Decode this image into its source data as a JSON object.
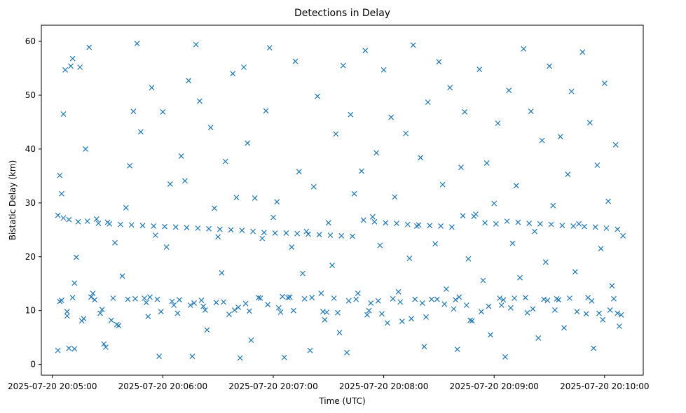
{
  "chart_data": {
    "type": "scatter",
    "title": "Detections in Delay",
    "xlabel": "Time (UTC)",
    "ylabel": "Bistatic Delay (km)",
    "x_ticks": [
      "2025-07-20 20:05:00",
      "2025-07-20 20:06:00",
      "2025-07-20 20:07:00",
      "2025-07-20 20:08:00",
      "2025-07-20 20:09:00",
      "2025-07-20 20:10:00"
    ],
    "y_ticks": [
      "0",
      "10",
      "20",
      "30",
      "40",
      "50",
      "60"
    ],
    "xlim": [
      "2025-07-20 20:04:54",
      "2025-07-20 20:10:21"
    ],
    "ylim": [
      -2,
      63
    ],
    "grid": false,
    "marker": "x",
    "color": "#1f77b4",
    "series": [
      {
        "name": "",
        "x": [
          "2025-07-20 20:05:03",
          "2025-07-20 20:05:04",
          "2025-07-20 20:05:05",
          "2025-07-20 20:05:06",
          "2025-07-20 20:05:07",
          "2025-07-20 20:05:08",
          "2025-07-20 20:05:09",
          "2025-07-20 20:05:10",
          "2025-07-20 20:05:11",
          "2025-07-20 20:05:12",
          "2025-07-20 20:05:13",
          "2025-07-20 20:05:15",
          "2025-07-20 20:05:17",
          "2025-07-20 20:05:18",
          "2025-07-20 20:05:20",
          "2025-07-20 20:05:22",
          "2025-07-20 20:05:24",
          "2025-07-20 20:05:26",
          "2025-07-20 20:05:28",
          "2025-07-20 20:05:30",
          "2025-07-20 20:05:32",
          "2025-07-20 20:05:34",
          "2025-07-20 20:05:36",
          "2025-07-20 20:05:38",
          "2025-07-20 20:05:40",
          "2025-07-20 20:05:42",
          "2025-07-20 20:05:44",
          "2025-07-20 20:05:46",
          "2025-07-20 20:05:48",
          "2025-07-20 20:05:50",
          "2025-07-20 20:05:52",
          "2025-07-20 20:05:54",
          "2025-07-20 20:05:56",
          "2025-07-20 20:05:58",
          "2025-07-20 20:06:00",
          "2025-07-20 20:06:02",
          "2025-07-20 20:06:04",
          "2025-07-20 20:06:06",
          "2025-07-20 20:06:08",
          "2025-07-20 20:06:10",
          "2025-07-20 20:06:12",
          "2025-07-20 20:06:14",
          "2025-07-20 20:06:16",
          "2025-07-20 20:06:18",
          "2025-07-20 20:06:20",
          "2025-07-20 20:06:22",
          "2025-07-20 20:06:24",
          "2025-07-20 20:06:26",
          "2025-07-20 20:06:28",
          "2025-07-20 20:06:30",
          "2025-07-20 20:06:32",
          "2025-07-20 20:06:34",
          "2025-07-20 20:06:36",
          "2025-07-20 20:06:38",
          "2025-07-20 20:06:40",
          "2025-07-20 20:06:42",
          "2025-07-20 20:06:44",
          "2025-07-20 20:06:46",
          "2025-07-20 20:06:48",
          "2025-07-20 20:06:50",
          "2025-07-20 20:06:52",
          "2025-07-20 20:06:54",
          "2025-07-20 20:06:56",
          "2025-07-20 20:06:58",
          "2025-07-20 20:07:00",
          "2025-07-20 20:07:02",
          "2025-07-20 20:07:04",
          "2025-07-20 20:07:06",
          "2025-07-20 20:07:08",
          "2025-07-20 20:07:10",
          "2025-07-20 20:07:12",
          "2025-07-20 20:07:14",
          "2025-07-20 20:07:16",
          "2025-07-20 20:07:18",
          "2025-07-20 20:07:20",
          "2025-07-20 20:07:22",
          "2025-07-20 20:07:24",
          "2025-07-20 20:07:26",
          "2025-07-20 20:07:28",
          "2025-07-20 20:07:30",
          "2025-07-20 20:07:32",
          "2025-07-20 20:07:34",
          "2025-07-20 20:07:36",
          "2025-07-20 20:07:38",
          "2025-07-20 20:07:40",
          "2025-07-20 20:07:42",
          "2025-07-20 20:07:44",
          "2025-07-20 20:07:46",
          "2025-07-20 20:07:48",
          "2025-07-20 20:07:50",
          "2025-07-20 20:07:52",
          "2025-07-20 20:07:54",
          "2025-07-20 20:07:56",
          "2025-07-20 20:07:58",
          "2025-07-20 20:08:00",
          "2025-07-20 20:08:02",
          "2025-07-20 20:08:04",
          "2025-07-20 20:08:06",
          "2025-07-20 20:08:08",
          "2025-07-20 20:08:10",
          "2025-07-20 20:08:12",
          "2025-07-20 20:08:14",
          "2025-07-20 20:08:16",
          "2025-07-20 20:08:18",
          "2025-07-20 20:08:20",
          "2025-07-20 20:08:22",
          "2025-07-20 20:08:24",
          "2025-07-20 20:08:26",
          "2025-07-20 20:08:28",
          "2025-07-20 20:08:30",
          "2025-07-20 20:08:32",
          "2025-07-20 20:08:34",
          "2025-07-20 20:08:36",
          "2025-07-20 20:08:38",
          "2025-07-20 20:08:40",
          "2025-07-20 20:08:42",
          "2025-07-20 20:08:44",
          "2025-07-20 20:08:46",
          "2025-07-20 20:08:48",
          "2025-07-20 20:08:50",
          "2025-07-20 20:08:52",
          "2025-07-20 20:08:54",
          "2025-07-20 20:08:56",
          "2025-07-20 20:08:58",
          "2025-07-20 20:09:00",
          "2025-07-20 20:09:02",
          "2025-07-20 20:09:04",
          "2025-07-20 20:09:06",
          "2025-07-20 20:09:08",
          "2025-07-20 20:09:10",
          "2025-07-20 20:09:12",
          "2025-07-20 20:09:14",
          "2025-07-20 20:09:16",
          "2025-07-20 20:09:18",
          "2025-07-20 20:09:20",
          "2025-07-20 20:09:22",
          "2025-07-20 20:09:24",
          "2025-07-20 20:09:26",
          "2025-07-20 20:09:28",
          "2025-07-20 20:09:30",
          "2025-07-20 20:09:32",
          "2025-07-20 20:09:34",
          "2025-07-20 20:09:36",
          "2025-07-20 20:09:38",
          "2025-07-20 20:09:40",
          "2025-07-20 20:09:42",
          "2025-07-20 20:09:44",
          "2025-07-20 20:09:46",
          "2025-07-20 20:09:48",
          "2025-07-20 20:09:50",
          "2025-07-20 20:09:52",
          "2025-07-20 20:09:54",
          "2025-07-20 20:09:56",
          "2025-07-20 20:09:58",
          "2025-07-20 20:10:00",
          "2025-07-20 20:10:02",
          "2025-07-20 20:10:04",
          "2025-07-20 20:10:06",
          "2025-07-20 20:10:08",
          "2025-07-20 20:10:10",
          "2025-07-20 20:05:03",
          "2025-07-20 20:05:06",
          "2025-07-20 20:05:09",
          "2025-07-20 20:05:14",
          "2025-07-20 20:05:19",
          "2025-07-20 20:05:25",
          "2025-07-20 20:05:31",
          "2025-07-20 20:05:37",
          "2025-07-20 20:05:43",
          "2025-07-20 20:05:49",
          "2025-07-20 20:05:55",
          "2025-07-20 20:06:01",
          "2025-07-20 20:06:07",
          "2025-07-20 20:06:13",
          "2025-07-20 20:06:19",
          "2025-07-20 20:06:25",
          "2025-07-20 20:06:31",
          "2025-07-20 20:06:37",
          "2025-07-20 20:06:43",
          "2025-07-20 20:06:49",
          "2025-07-20 20:06:55",
          "2025-07-20 20:07:01",
          "2025-07-20 20:07:07",
          "2025-07-20 20:07:13",
          "2025-07-20 20:07:19",
          "2025-07-20 20:07:25",
          "2025-07-20 20:07:31",
          "2025-07-20 20:07:37",
          "2025-07-20 20:07:43",
          "2025-07-20 20:07:49",
          "2025-07-20 20:07:55",
          "2025-07-20 20:08:01",
          "2025-07-20 20:08:07",
          "2025-07-20 20:08:13",
          "2025-07-20 20:08:19",
          "2025-07-20 20:08:25",
          "2025-07-20 20:08:31",
          "2025-07-20 20:08:37",
          "2025-07-20 20:08:43",
          "2025-07-20 20:08:49",
          "2025-07-20 20:08:55",
          "2025-07-20 20:09:01",
          "2025-07-20 20:09:07",
          "2025-07-20 20:09:13",
          "2025-07-20 20:09:19",
          "2025-07-20 20:09:25",
          "2025-07-20 20:09:31",
          "2025-07-20 20:09:37",
          "2025-07-20 20:09:43",
          "2025-07-20 20:09:49",
          "2025-07-20 20:09:55",
          "2025-07-20 20:10:01",
          "2025-07-20 20:10:07",
          "2025-07-20 20:05:04",
          "2025-07-20 20:05:11",
          "2025-07-20 20:05:21",
          "2025-07-20 20:05:33",
          "2025-07-20 20:05:45",
          "2025-07-20 20:05:57",
          "2025-07-20 20:06:09",
          "2025-07-20 20:06:21",
          "2025-07-20 20:06:33",
          "2025-07-20 20:06:45",
          "2025-07-20 20:06:57",
          "2025-07-20 20:07:09",
          "2025-07-20 20:07:21",
          "2025-07-20 20:07:33",
          "2025-07-20 20:07:45",
          "2025-07-20 20:07:57",
          "2025-07-20 20:08:09",
          "2025-07-20 20:08:21",
          "2025-07-20 20:08:33",
          "2025-07-20 20:08:45",
          "2025-07-20 20:08:57",
          "2025-07-20 20:09:09",
          "2025-07-20 20:09:21",
          "2025-07-20 20:09:33",
          "2025-07-20 20:09:45",
          "2025-07-20 20:09:57",
          "2025-07-20 20:10:09",
          "2025-07-20 20:05:08",
          "2025-07-20 20:05:27",
          "2025-07-20 20:05:51",
          "2025-07-20 20:06:15",
          "2025-07-20 20:06:39",
          "2025-07-20 20:07:03",
          "2025-07-20 20:07:27",
          "2025-07-20 20:07:51",
          "2025-07-20 20:08:15",
          "2025-07-20 20:08:39",
          "2025-07-20 20:09:03",
          "2025-07-20 20:09:27",
          "2025-07-20 20:09:51",
          "2025-07-20 20:10:05",
          "2025-07-20 20:05:16",
          "2025-07-20 20:05:35",
          "2025-07-20 20:05:59",
          "2025-07-20 20:06:23",
          "2025-07-20 20:06:47",
          "2025-07-20 20:07:11",
          "2025-07-20 20:07:35",
          "2025-07-20 20:07:59",
          "2025-07-20 20:08:23",
          "2025-07-20 20:08:47",
          "2025-07-20 20:09:11",
          "2025-07-20 20:09:35",
          "2025-07-20 20:09:59",
          "2025-07-20 20:05:05",
          "2025-07-20 20:05:23",
          "2025-07-20 20:05:41",
          "2025-07-20 20:06:05",
          "2025-07-20 20:06:29",
          "2025-07-20 20:06:53",
          "2025-07-20 20:07:17",
          "2025-07-20 20:07:41",
          "2025-07-20 20:08:05",
          "2025-07-20 20:08:29",
          "2025-07-20 20:08:53",
          "2025-07-20 20:09:17",
          "2025-07-20 20:09:41",
          "2025-07-20 20:10:03",
          "2025-07-20 20:05:12",
          "2025-07-20 20:05:29",
          "2025-07-20 20:05:53",
          "2025-07-20 20:06:17",
          "2025-07-20 20:06:41",
          "2025-07-20 20:07:05",
          "2025-07-20 20:07:29",
          "2025-07-20 20:07:53",
          "2025-07-20 20:08:17",
          "2025-07-20 20:08:41",
          "2025-07-20 20:09:05",
          "2025-07-20 20:09:29",
          "2025-07-20 20:09:53",
          "2025-07-20 20:10:07"
        ],
        "y": [
          2.6,
          35.1,
          31.7,
          46.5,
          54.7,
          9.8,
          3.0,
          55.4,
          56.8,
          15.1,
          19.9,
          55.2,
          8.5,
          40.0,
          58.9,
          13.2,
          27.0,
          9.5,
          3.8,
          26.4,
          8.2,
          22.6,
          7.2,
          16.4,
          29.1,
          36.9,
          47.0,
          59.6,
          43.2,
          12.3,
          8.9,
          51.4,
          24.0,
          1.5,
          46.9,
          21.8,
          33.5,
          11.0,
          9.5,
          38.7,
          34.1,
          52.7,
          1.5,
          59.4,
          48.9,
          10.8,
          6.4,
          44.0,
          29.0,
          23.7,
          17.0,
          37.7,
          9.3,
          54.0,
          31.0,
          1.2,
          55.2,
          41.1,
          4.5,
          30.9,
          12.4,
          23.4,
          47.1,
          58.8,
          27.3,
          30.2,
          9.7,
          1.3,
          12.4,
          21.8,
          56.3,
          35.8,
          16.9,
          24.7,
          2.6,
          33.0,
          49.8,
          13.2,
          8.3,
          26.3,
          18.4,
          42.8,
          5.9,
          55.5,
          2.2,
          46.4,
          31.7,
          13.2,
          35.9,
          58.3,
          10.0,
          27.4,
          39.3,
          22.1,
          54.7,
          7.7,
          45.9,
          31.1,
          13.5,
          8.0,
          42.9,
          19.7,
          59.3,
          25.7,
          38.4,
          3.3,
          48.7,
          12.1,
          22.4,
          56.2,
          33.4,
          14.0,
          51.4,
          10.3,
          2.8,
          36.6,
          46.9,
          19.6,
          8.1,
          27.9,
          54.8,
          15.6,
          37.4,
          5.5,
          29.9,
          44.8,
          11.0,
          1.4,
          50.9,
          22.5,
          33.2,
          16.1,
          58.6,
          9.6,
          47.0,
          24.7,
          4.9,
          41.6,
          19.0,
          55.4,
          29.5,
          12.2,
          42.3,
          6.8,
          35.3,
          50.7,
          17.2,
          26.1,
          58.0,
          9.4,
          44.9,
          3.0,
          37.0,
          21.5,
          52.2,
          30.3,
          14.6,
          40.8,
          7.1,
          23.9,
          27.7,
          27.2,
          26.9,
          26.5,
          26.6,
          26.2,
          26.1,
          26.0,
          25.9,
          25.8,
          25.7,
          25.6,
          25.5,
          25.4,
          25.3,
          25.2,
          25.1,
          25.0,
          24.9,
          24.7,
          24.5,
          24.4,
          24.4,
          24.3,
          24.2,
          24.1,
          24.0,
          23.9,
          23.8,
          26.8,
          26.5,
          26.3,
          26.2,
          26.0,
          25.9,
          25.8,
          25.7,
          25.5,
          27.6,
          27.5,
          26.3,
          26.1,
          26.6,
          26.4,
          26.2,
          26.1,
          26.0,
          25.8,
          25.7,
          25.6,
          25.5,
          25.3,
          25.1,
          11.7,
          12.4,
          12.5,
          12.3,
          12.2,
          12.1,
          12.0,
          11.9,
          11.6,
          11.3,
          11.1,
          12.5,
          12.4,
          12.3,
          12.1,
          11.8,
          11.6,
          11.4,
          11.2,
          11.0,
          10.8,
          10.5,
          10.3,
          10.1,
          9.8,
          9.5,
          9.2,
          9.0,
          10.2,
          11.5,
          11.0,
          10.1,
          10.5,
          9.8,
          9.2,
          8.5,
          12.0,
          12.3,
          12.1,
          12.4,
          12.2,
          8.1,
          7.4,
          9.8,
          10.1,
          9.9,
          10.0,
          9.6,
          9.4,
          8.8,
          8.2,
          12.3,
          12.0,
          8.3,
          11.9,
          12.0,
          12.1,
          11.7,
          11.5,
          12.3,
          12.2,
          11.8,
          12.2,
          12.1,
          9.8,
          12.4,
          12.3,
          10.1,
          2.9,
          3.2,
          12.5,
          11.4,
          10.6,
          12.6,
          9.7,
          11.4,
          12.1,
          12.5,
          12.0,
          11.9,
          11.8,
          9.5
        ]
      }
    ]
  }
}
